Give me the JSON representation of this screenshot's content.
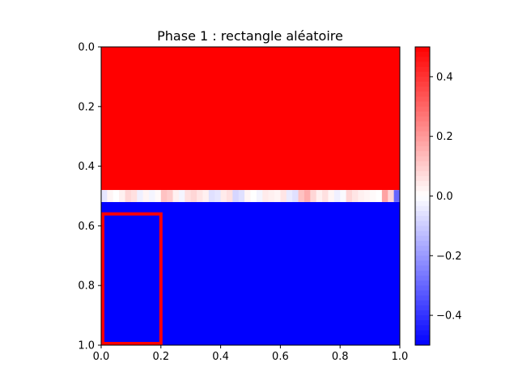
{
  "chart_data": {
    "type": "heatmap",
    "title": "Phase 1 : rectangle aléatoire",
    "xlabel": "",
    "ylabel": "",
    "xlim": [
      0.0,
      1.0
    ],
    "ylim": [
      1.0,
      0.0
    ],
    "x_ticks": [
      "0.0",
      "0.2",
      "0.4",
      "0.6",
      "0.8",
      "1.0"
    ],
    "y_ticks": [
      "0.0",
      "0.2",
      "0.4",
      "0.6",
      "0.8",
      "1.0"
    ],
    "colormap": "bwr",
    "color_range": [
      -0.5,
      0.5
    ],
    "colorbar_ticks": [
      "0.4",
      "0.2",
      "0.0",
      "−0.2",
      "−0.4"
    ],
    "regions": [
      {
        "y_range": [
          0.0,
          0.48
        ],
        "value": 0.5
      },
      {
        "y_range": [
          0.52,
          1.0
        ],
        "value": -0.5
      }
    ],
    "boundary_row": {
      "y_range": [
        0.48,
        0.52
      ],
      "x_step": 0.02,
      "values": [
        -0.05,
        0.02,
        0.0,
        0.03,
        0.08,
        0.06,
        -0.03,
        0.02,
        -0.02,
        0.01,
        0.12,
        0.1,
        0.03,
        -0.02,
        0.06,
        0.08,
        0.05,
        0.03,
        -0.06,
        -0.05,
        0.04,
        0.06,
        -0.08,
        -0.06,
        0.02,
        0.0,
        -0.02,
        0.04,
        0.03,
        0.02,
        0.05,
        -0.04,
        -0.06,
        0.12,
        0.16,
        0.08,
        0.03,
        0.06,
        0.02,
        -0.03,
        -0.01,
        0.08,
        0.05,
        0.03,
        0.02,
        0.01,
        0.0,
        0.18,
        0.08,
        -0.3
      ]
    },
    "rectangle": {
      "x": [
        0.0,
        0.2
      ],
      "y": [
        0.56,
        1.0
      ],
      "color": "#ff0000"
    }
  }
}
